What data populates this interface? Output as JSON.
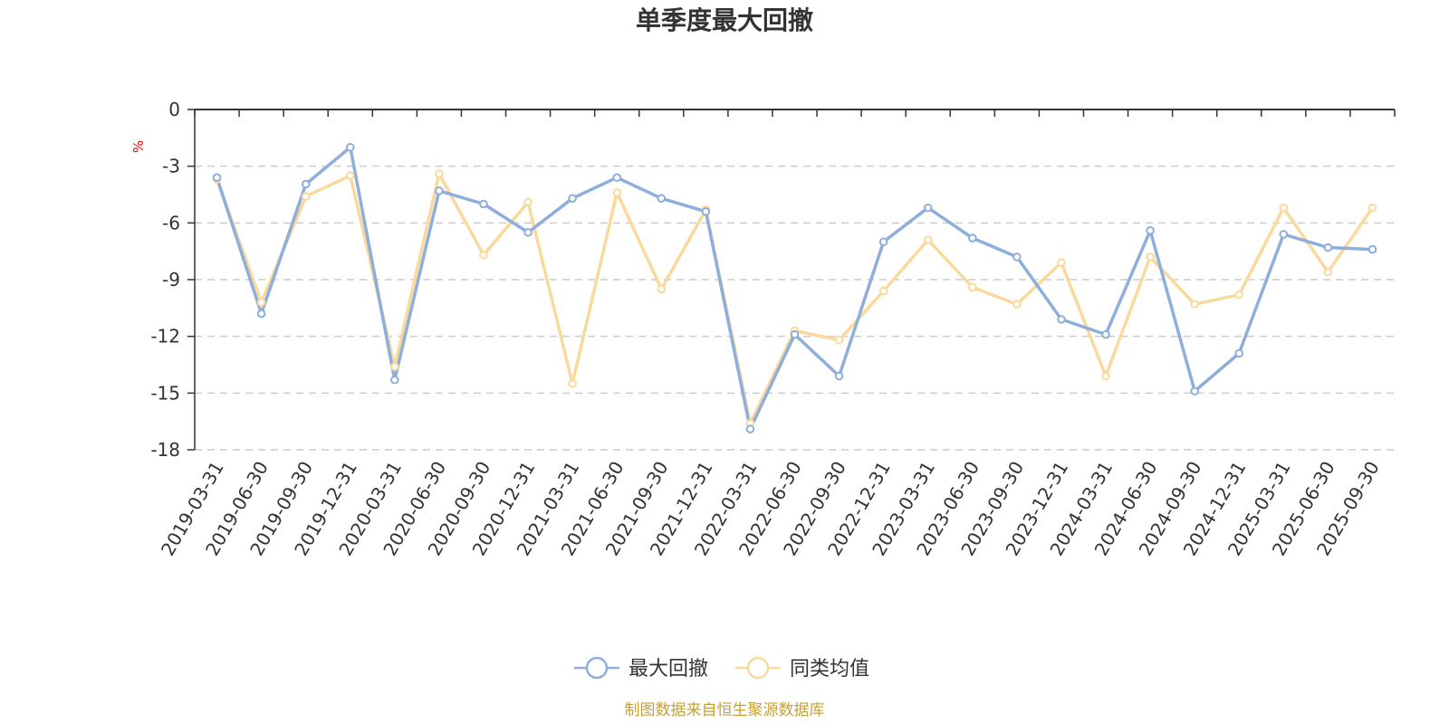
{
  "chart_data": {
    "type": "line",
    "title": "单季度最大回撤",
    "yunit": "%",
    "ylim": [
      -18,
      0
    ],
    "yticks": [
      0,
      -3,
      -6,
      -9,
      -12,
      -15,
      -18
    ],
    "grid": true,
    "categories": [
      "2019-03-31",
      "2019-06-30",
      "2019-09-30",
      "2019-12-31",
      "2020-03-31",
      "2020-06-30",
      "2020-09-30",
      "2020-12-31",
      "2021-03-31",
      "2021-06-30",
      "2021-09-30",
      "2021-12-31",
      "2022-03-31",
      "2022-06-30",
      "2022-09-30",
      "2022-12-31",
      "2023-03-31",
      "2023-06-30",
      "2023-09-30",
      "2023-12-31",
      "2024-03-31",
      "2024-06-30",
      "2024-09-30",
      "2024-12-31",
      "2025-03-31",
      "2025-06-30",
      "2025-09-30"
    ],
    "series": [
      {
        "name": "最大回撤",
        "color": "#8eaedb",
        "values": [
          -3.6,
          -10.8,
          -3.95,
          -2.0,
          -14.3,
          -4.3,
          -5.0,
          -6.5,
          -4.7,
          -3.6,
          -4.7,
          -5.4,
          -16.9,
          -11.9,
          -14.1,
          -7.0,
          -5.2,
          -6.8,
          -7.8,
          -11.1,
          -11.9,
          -6.4,
          -14.9,
          -12.9,
          -6.6,
          -7.3,
          -7.4
        ]
      },
      {
        "name": "同类均值",
        "color": "#fad99c",
        "values": [
          -3.7,
          -10.2,
          -4.6,
          -3.5,
          -13.6,
          -3.4,
          -7.7,
          -4.9,
          -14.5,
          -4.4,
          -9.5,
          -5.3,
          -16.6,
          -11.7,
          -12.2,
          -9.6,
          -6.9,
          -9.4,
          -10.3,
          -8.1,
          -14.1,
          -7.8,
          -10.3,
          -9.8,
          -5.2,
          -8.6,
          -5.2
        ]
      }
    ],
    "legend_position": "bottom-center"
  },
  "source_note": "制图数据来自恒生聚源数据库"
}
